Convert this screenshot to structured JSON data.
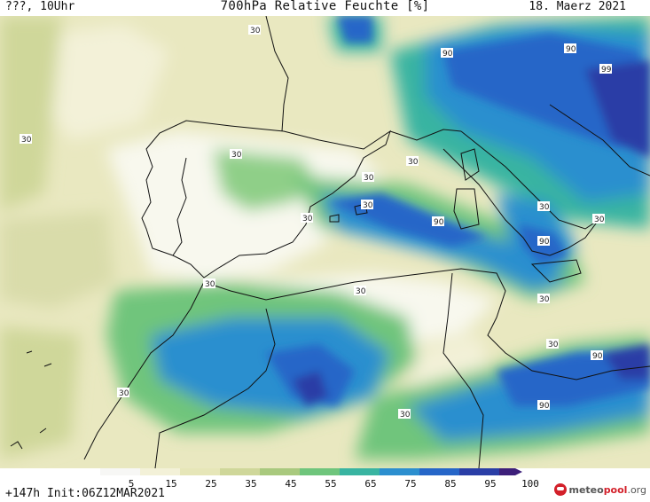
{
  "header": {
    "left_text": "???, 10Uhr",
    "title": "700hPa Relative Feuchte [%]",
    "date": "18. Maerz 2021"
  },
  "footer": {
    "init_text": "+147h Init:06Z12MAR2021",
    "logo_text_1": "meteo",
    "logo_text_2": "pool",
    "logo_text_3": ".org"
  },
  "colorbar": {
    "ticks": [
      "5",
      "15",
      "25",
      "35",
      "45",
      "55",
      "65",
      "75",
      "85",
      "95",
      "100"
    ],
    "colors": [
      "#f7f7f5",
      "#f3f1d8",
      "#e6e6b8",
      "#cfd79a",
      "#a9c97e",
      "#6fc57c",
      "#39b4a1",
      "#2c8fcf",
      "#2666c8",
      "#2a3ea6",
      "#3d1f7a"
    ]
  },
  "contour_labels": [
    "30",
    "30",
    "30",
    "30",
    "30",
    "30",
    "30",
    "30",
    "30",
    "30",
    "30",
    "30",
    "30",
    "30",
    "30",
    "90",
    "90",
    "90",
    "90",
    "90",
    "90",
    "90",
    "99"
  ]
}
